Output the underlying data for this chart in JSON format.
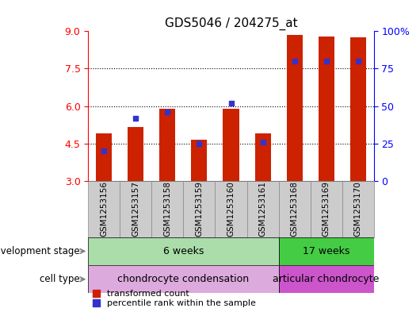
{
  "title": "GDS5046 / 204275_at",
  "samples": [
    "GSM1253156",
    "GSM1253157",
    "GSM1253158",
    "GSM1253159",
    "GSM1253160",
    "GSM1253161",
    "GSM1253168",
    "GSM1253169",
    "GSM1253170"
  ],
  "transformed_count": [
    4.9,
    5.15,
    5.9,
    4.65,
    5.9,
    4.9,
    8.85,
    8.8,
    8.75
  ],
  "percentile_rank": [
    20,
    42,
    46,
    25,
    52,
    26,
    80,
    80,
    80
  ],
  "ylim_left": [
    3,
    9
  ],
  "ylim_right": [
    0,
    100
  ],
  "yticks_left": [
    3,
    4.5,
    6,
    7.5,
    9
  ],
  "yticks_right": [
    0,
    25,
    50,
    75,
    100
  ],
  "ytick_labels_right": [
    "0",
    "25",
    "50",
    "75",
    "100%"
  ],
  "bar_color": "#cc2200",
  "dot_color": "#3333cc",
  "bar_bottom": 3,
  "dev_stage_groups": [
    {
      "label": "6 weeks",
      "start": 0,
      "end": 6,
      "color": "#aaddaa"
    },
    {
      "label": "17 weeks",
      "start": 6,
      "end": 9,
      "color": "#44cc44"
    }
  ],
  "cell_type_groups": [
    {
      "label": "chondrocyte condensation",
      "start": 0,
      "end": 6,
      "color": "#ddaadd"
    },
    {
      "label": "articular chondrocyte",
      "start": 6,
      "end": 9,
      "color": "#cc55cc"
    }
  ],
  "dev_stage_label": "development stage",
  "cell_type_label": "cell type",
  "legend_bar_label": "transformed count",
  "legend_dot_label": "percentile rank within the sample",
  "tick_box_color": "#cccccc",
  "tick_box_edge_color": "#888888",
  "bar_width": 0.5
}
